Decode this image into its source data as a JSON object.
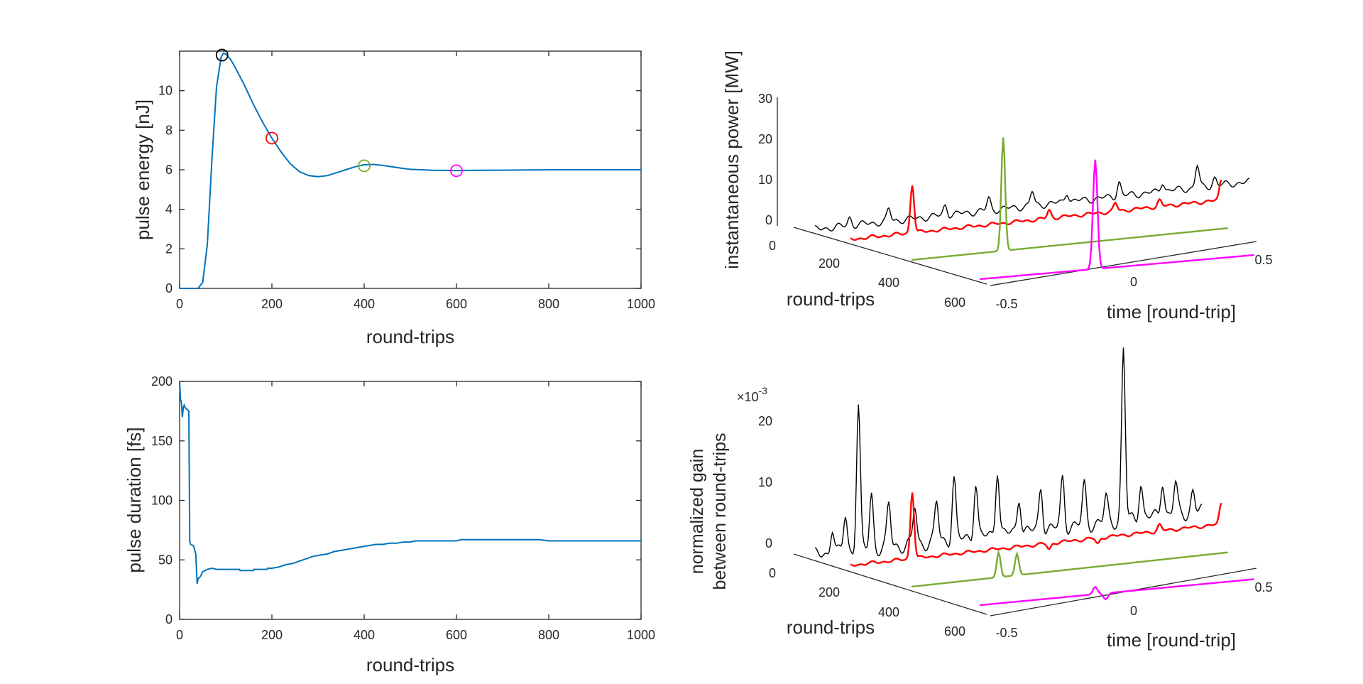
{
  "colors": {
    "main_line": "#0072BD",
    "marker_black": "#000000",
    "marker_red": "#FF0000",
    "marker_green": "#77AC30",
    "marker_magenta": "#FF00FF",
    "axis": "#262626"
  },
  "chart_data": [
    {
      "id": "energy",
      "type": "line",
      "xlabel": "round-trips",
      "ylabel": "pulse energy [nJ]",
      "xlim": [
        0,
        1000
      ],
      "ylim": [
        0,
        12
      ],
      "xticks": [
        0,
        200,
        400,
        600,
        800,
        1000
      ],
      "yticks": [
        0,
        2,
        4,
        6,
        8,
        10
      ],
      "series": [
        {
          "name": "pulse energy",
          "x": [
            0,
            40,
            50,
            60,
            70,
            80,
            90,
            95,
            100,
            110,
            120,
            140,
            160,
            180,
            200,
            220,
            240,
            260,
            280,
            300,
            320,
            340,
            360,
            380,
            400,
            420,
            440,
            460,
            480,
            500,
            550,
            600,
            650,
            700,
            800,
            900,
            1000
          ],
          "y": [
            0,
            0,
            0.3,
            2.2,
            6.5,
            10.2,
            11.7,
            11.9,
            11.85,
            11.6,
            11.2,
            10.3,
            9.3,
            8.4,
            7.6,
            6.9,
            6.3,
            5.9,
            5.7,
            5.65,
            5.7,
            5.85,
            6.0,
            6.15,
            6.25,
            6.27,
            6.22,
            6.15,
            6.08,
            6.02,
            5.97,
            5.96,
            5.97,
            5.98,
            6.0,
            6.0,
            6.0
          ]
        }
      ],
      "markers": [
        {
          "x": 92,
          "y": 11.8,
          "color": "#000000"
        },
        {
          "x": 200,
          "y": 7.6,
          "color": "#FF0000"
        },
        {
          "x": 400,
          "y": 6.2,
          "color": "#77AC30"
        },
        {
          "x": 600,
          "y": 5.95,
          "color": "#FF00FF"
        }
      ]
    },
    {
      "id": "duration",
      "type": "line",
      "xlabel": "round-trips",
      "ylabel": "pulse duration [fs]",
      "xlim": [
        0,
        1000
      ],
      "ylim": [
        0,
        200
      ],
      "xticks": [
        0,
        200,
        400,
        600,
        800,
        1000
      ],
      "yticks": [
        0,
        50,
        100,
        150,
        200
      ],
      "series": [
        {
          "name": "pulse duration",
          "x": [
            0,
            2,
            4,
            6,
            8,
            10,
            12,
            20,
            22,
            24,
            30,
            35,
            38,
            40,
            45,
            50,
            60,
            70,
            80,
            90,
            100,
            130,
            131,
            160,
            161,
            190,
            191,
            200,
            215,
            230,
            245,
            260,
            275,
            290,
            305,
            320,
            335,
            350,
            365,
            380,
            395,
            410,
            425,
            440,
            455,
            470,
            485,
            500,
            510,
            520,
            600,
            610,
            780,
            800,
            1000
          ],
          "y": [
            200,
            185,
            182,
            170,
            178,
            180,
            178,
            175,
            65,
            63,
            62,
            55,
            30,
            34,
            36,
            40,
            42,
            43,
            42,
            42,
            42,
            42,
            41,
            41,
            42,
            42,
            43,
            43,
            44,
            46,
            47,
            49,
            51,
            53,
            54,
            55,
            57,
            58,
            59,
            60,
            61,
            62,
            63,
            63,
            64,
            64,
            65,
            65,
            66,
            66,
            66,
            67,
            67,
            66,
            66
          ]
        }
      ]
    },
    {
      "id": "power",
      "type": "line",
      "subtype": "3d-waterfall",
      "xlabel": "time [round-trip]",
      "ylabel": "round-trips",
      "zlabel": "instantaneous power [MW]",
      "xticks": [
        "-0.5",
        "0",
        "0.5"
      ],
      "yticks": [
        "0",
        "200",
        "400",
        "600"
      ],
      "zticks": [
        "0",
        "10",
        "20",
        "30"
      ],
      "series": [
        {
          "round_trip": 92,
          "color": "#000000",
          "peaks": [
            [
              -0.42,
              2.0
            ],
            [
              -0.33,
              3.0
            ],
            [
              -0.2,
              2.5
            ],
            [
              -0.1,
              3.0
            ],
            [
              0.0,
              3.5
            ],
            [
              0.08,
              2.5
            ],
            [
              0.2,
              3.5
            ],
            [
              0.3,
              2.5
            ],
            [
              0.38,
              5.5
            ],
            [
              0.42,
              2.0
            ]
          ]
        },
        {
          "round_trip": 200,
          "color": "#FF0000",
          "peaks": [
            [
              -0.36,
              12.0
            ],
            [
              -0.05,
              2.0
            ],
            [
              0.1,
              2.0
            ],
            [
              0.2,
              1.5
            ],
            [
              0.34,
              5.0
            ],
            [
              0.43,
              7.0
            ]
          ]
        },
        {
          "round_trip": 400,
          "color": "#77AC30",
          "peaks": [
            [
              -0.3,
              28.0
            ],
            [
              0.33,
              1.5
            ]
          ]
        },
        {
          "round_trip": 600,
          "color": "#FF00FF",
          "peaks": [
            [
              -0.28,
              27.0
            ]
          ]
        }
      ]
    },
    {
      "id": "gain",
      "type": "line",
      "subtype": "3d-waterfall",
      "xlabel": "time [round-trip]",
      "ylabel": "round-trips",
      "zlabel": "normalized gain between round-trips",
      "zlabel_lines": [
        "normalized gain",
        "between round-trips"
      ],
      "zscale": "×10",
      "zscale_exp": "-3",
      "xticks": [
        "-0.5",
        "0",
        "0.5"
      ],
      "yticks": [
        "0",
        "200",
        "400",
        "600"
      ],
      "zticks": [
        "0",
        "10",
        "20"
      ],
      "series": [
        {
          "round_trip": 92,
          "color": "#000000",
          "peaks": [
            [
              -0.46,
              4.5
            ],
            [
              -0.43,
              6.0
            ],
            [
              -0.4,
              24.0
            ],
            [
              -0.37,
              9.0
            ],
            [
              -0.33,
              7.0
            ],
            [
              -0.27,
              6.0
            ],
            [
              -0.22,
              6.5
            ],
            [
              -0.18,
              10.0
            ],
            [
              -0.13,
              9.0
            ],
            [
              -0.08,
              11.0
            ],
            [
              -0.03,
              6.0
            ],
            [
              0.02,
              7.0
            ],
            [
              0.07,
              8.0
            ],
            [
              0.12,
              6.5
            ],
            [
              0.17,
              4.0
            ],
            [
              0.21,
              28.0
            ],
            [
              0.25,
              6.0
            ],
            [
              0.3,
              6.0
            ],
            [
              0.33,
              5.0
            ],
            [
              0.37,
              3.5
            ]
          ]
        },
        {
          "round_trip": 200,
          "color": "#FF0000",
          "peaks": [
            [
              -0.36,
              11.0
            ],
            [
              -0.05,
              -1.0
            ],
            [
              0.06,
              -1.0
            ],
            [
              0.2,
              1.0
            ],
            [
              0.34,
              3.5
            ],
            [
              0.42,
              2.0
            ]
          ]
        },
        {
          "round_trip": 400,
          "color": "#77AC30",
          "peaks": [
            [
              -0.31,
              4.0
            ],
            [
              -0.27,
              3.5
            ],
            [
              0.33,
              -4.0
            ]
          ]
        },
        {
          "round_trip": 600,
          "color": "#FF00FF",
          "peaks": [
            [
              -0.28,
              1.2
            ],
            [
              -0.26,
              -1.0
            ]
          ]
        }
      ]
    }
  ]
}
